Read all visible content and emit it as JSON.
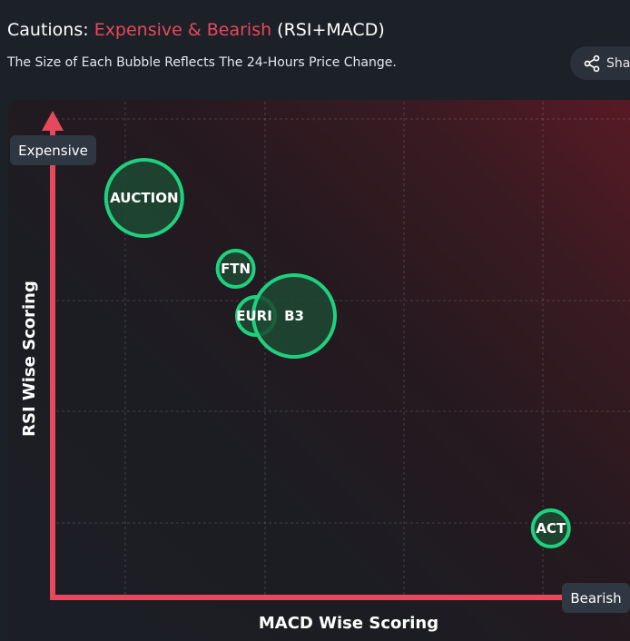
{
  "header": {
    "title_prefix": "Cautions: ",
    "title_accent": "Expensive & Bearish",
    "title_suffix": " (RSI+MACD)",
    "subtitle": "The Size of Each Bubble Reflects The 24-Hours Price Change.",
    "share_label": "Share"
  },
  "colors": {
    "accent": "#e8485b",
    "axis": "#e8485b",
    "bubble_stroke": "#1fd17f",
    "bubble_fill": "#1d4a33"
  },
  "chart_data": {
    "type": "scatter",
    "title": "Cautions: Expensive & Bearish (RSI+MACD)",
    "subtitle": "The Size of Each Bubble Reflects The 24-Hours Price Change.",
    "xlabel": "MACD Wise Scoring",
    "ylabel": "RSI Wise Scoring",
    "x_end_label": "Bearish",
    "y_end_label": "Expensive",
    "xlim": [
      0,
      100
    ],
    "ylim": [
      0,
      100
    ],
    "grid": true,
    "points": [
      {
        "label": "AUCTION",
        "x": 18,
        "y": 85,
        "size": 42
      },
      {
        "label": "FTN",
        "x": 36,
        "y": 70,
        "size": 20
      },
      {
        "label": "EURI",
        "x": 40,
        "y": 60,
        "size": 21
      },
      {
        "label": "B3",
        "x": 47.5,
        "y": 60,
        "size": 45
      },
      {
        "label": "ACT",
        "x": 98,
        "y": 15,
        "size": 20
      }
    ]
  }
}
